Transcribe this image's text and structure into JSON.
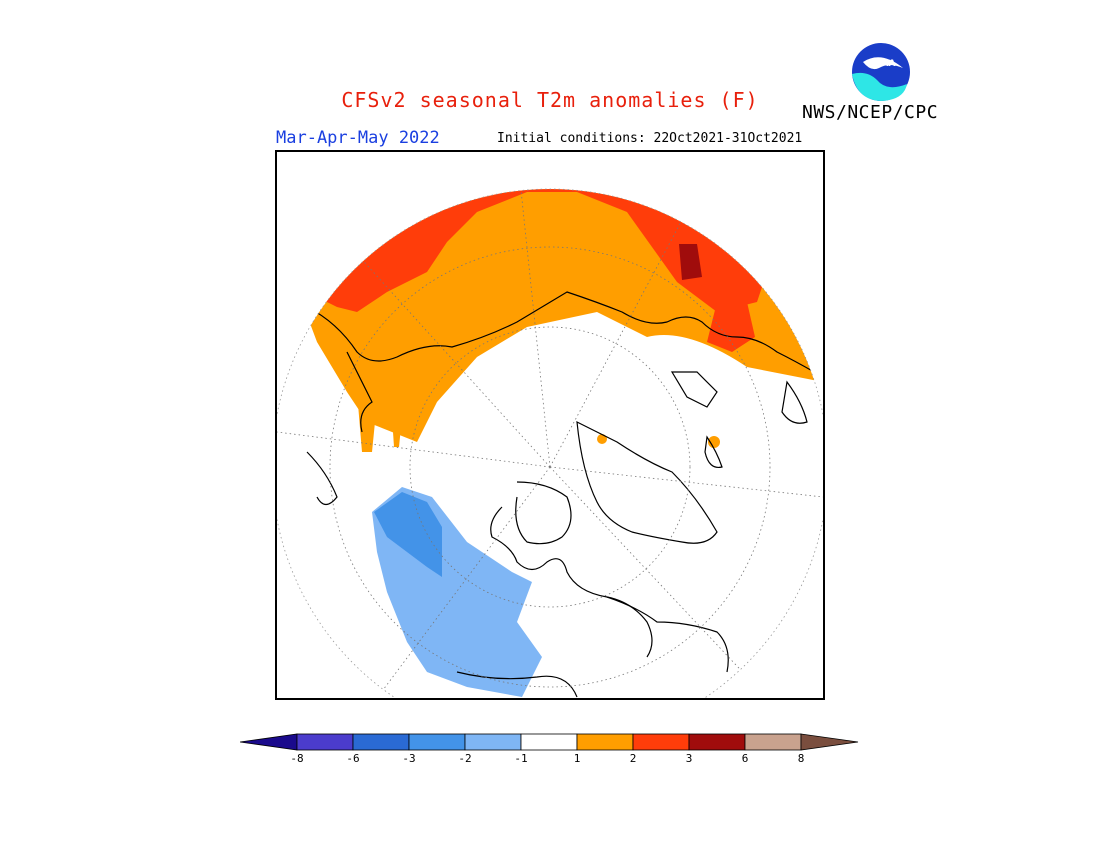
{
  "header": {
    "title": "CFSv2 seasonal T2m anomalies (F)",
    "title_color": "#e8200c",
    "org": "NWS/NCEP/CPC",
    "season": "Mar-Apr-May 2022",
    "season_color": "#1a3fe0",
    "initial_conditions": "Initial conditions: 22Oct2021-31Oct2021",
    "logo_text": "NOAA"
  },
  "map": {
    "projection": "north polar stereographic",
    "warm_region": "Eurasia / Siberia",
    "cool_region": "western North America",
    "features": [
      "coastlines",
      "dotted graticule"
    ]
  },
  "legend": {
    "colors": [
      "#1a0a8c",
      "#4b3ccc",
      "#2a6ad4",
      "#4393e8",
      "#7fb6f5",
      "#ffffff",
      "#ff9e00",
      "#ff3d0a",
      "#a00c0c",
      "#c9a28e",
      "#7a4e3e"
    ],
    "tick_labels": [
      "-8",
      "-6",
      "-3",
      "-2",
      "-1",
      "1",
      "2",
      "3",
      "6",
      "8"
    ]
  }
}
